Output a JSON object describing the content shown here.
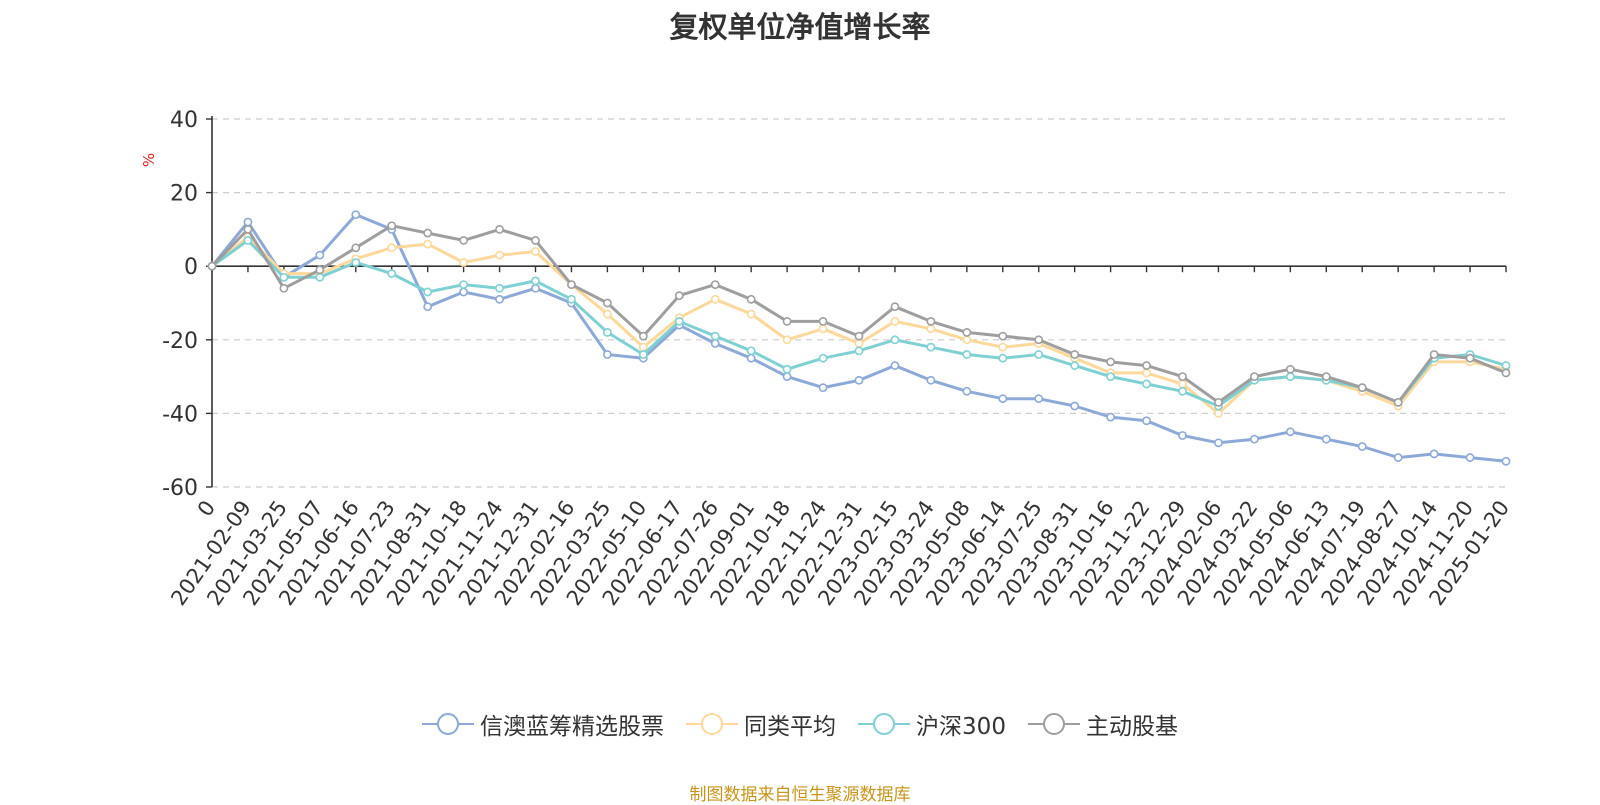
{
  "chart_data": {
    "type": "line",
    "title": "复权单位净值增长率",
    "ylabel": "%",
    "xlabel": "",
    "ylim": [
      -60,
      40
    ],
    "y_ticks": [
      40,
      20,
      0,
      -20,
      -40,
      -60
    ],
    "grid": true,
    "legend_position": "bottom",
    "x_tick_labels": [
      "0",
      "2021-02-09",
      "2021-03-25",
      "2021-05-07",
      "2021-06-16",
      "2021-07-23",
      "2021-08-31",
      "2021-10-18",
      "2021-11-24",
      "2021-12-31",
      "2022-02-16",
      "2022-03-25",
      "2022-05-10",
      "2022-06-17",
      "2022-07-26",
      "2022-09-01",
      "2022-10-18",
      "2022-11-24",
      "2022-12-31",
      "2023-02-15",
      "2023-03-24",
      "2023-05-08",
      "2023-06-14",
      "2023-07-25",
      "2023-08-31",
      "2023-10-16",
      "2023-11-22",
      "2023-12-29",
      "2024-02-06",
      "2024-03-22",
      "2024-05-06",
      "2024-06-13",
      "2024-07-19",
      "2024-08-27",
      "2024-10-14",
      "2024-11-20",
      "2025-01-20"
    ],
    "series": [
      {
        "name": "信澳蓝筹精选股票",
        "color": "#8da9d8",
        "values": [
          0,
          12,
          -3,
          3,
          14,
          10,
          -11,
          -7,
          -9,
          -6,
          -10,
          -24,
          -25,
          -16,
          -21,
          -25,
          -30,
          -33,
          -31,
          -27,
          -31,
          -34,
          -36,
          -36,
          -38,
          -41,
          -42,
          -46,
          -48,
          -47,
          -45,
          -47,
          -49,
          -52,
          -51,
          -52,
          -53
        ]
      },
      {
        "name": "同类平均",
        "color": "#fdd89b",
        "values": [
          0,
          8,
          -2,
          -2,
          2,
          5,
          6,
          1,
          3,
          4,
          -5,
          -13,
          -22,
          -14,
          -9,
          -13,
          -20,
          -17,
          -21,
          -15,
          -17,
          -20,
          -22,
          -21,
          -25,
          -29,
          -29,
          -32,
          -40,
          -31,
          -30,
          -31,
          -34,
          -38,
          -26,
          -26,
          -28
        ]
      },
      {
        "name": "沪深300",
        "color": "#7fd0d3",
        "values": [
          0,
          7,
          -3,
          -3,
          1,
          -2,
          -7,
          -5,
          -6,
          -4,
          -9,
          -18,
          -24,
          -15,
          -19,
          -23,
          -28,
          -25,
          -23,
          -20,
          -22,
          -24,
          -25,
          -24,
          -27,
          -30,
          -32,
          -34,
          -38,
          -31,
          -30,
          -31,
          -33,
          -37,
          -25,
          -24,
          -27
        ]
      },
      {
        "name": "主动股基",
        "color": "#9e9e9e",
        "values": [
          0,
          10,
          -6,
          -1,
          5,
          11,
          9,
          7,
          10,
          7,
          -5,
          -10,
          -19,
          -8,
          -5,
          -9,
          -15,
          -15,
          -19,
          -11,
          -15,
          -18,
          -19,
          -20,
          -24,
          -26,
          -27,
          -30,
          -37,
          -30,
          -28,
          -30,
          -33,
          -37,
          -24,
          -25,
          -29
        ]
      }
    ]
  },
  "footer": {
    "source_text": "制图数据来自恒生聚源数据库"
  }
}
